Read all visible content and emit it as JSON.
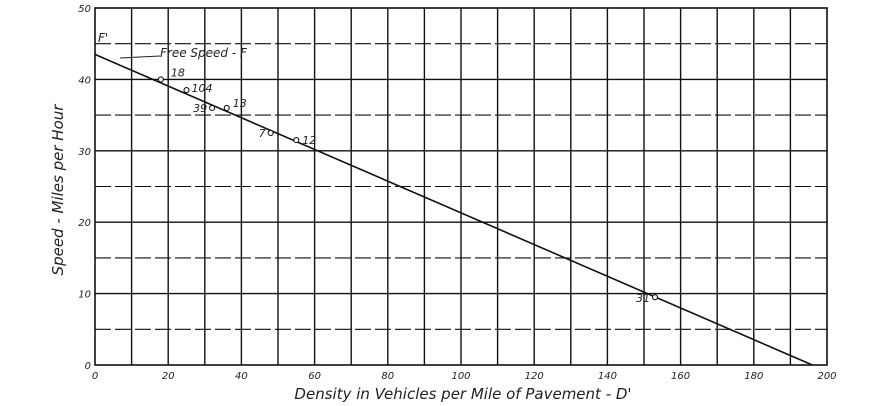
{
  "chart_data": {
    "type": "scatter",
    "xlabel": "Density in Vehicles per Mile of Pavement - D'",
    "ylabel": "Speed - Miles per Hour",
    "xlim": [
      0,
      200
    ],
    "ylim": [
      0,
      50
    ],
    "x_ticks": [
      "0",
      "20",
      "40",
      "60",
      "80",
      "100",
      "120",
      "140",
      "160",
      "180",
      "200"
    ],
    "y_ticks": [
      "0",
      "10",
      "20",
      "30",
      "40",
      "50"
    ],
    "grid": true,
    "points": [
      {
        "label": "18",
        "x": 18,
        "y": 40
      },
      {
        "label": "104",
        "x": 25,
        "y": 38.5
      },
      {
        "label": "39",
        "x": 32,
        "y": 36
      },
      {
        "label": "13",
        "x": 36,
        "y": 36
      },
      {
        "label": "7",
        "x": 48,
        "y": 32.5
      },
      {
        "label": "12",
        "x": 55,
        "y": 31.5
      },
      {
        "label": "31",
        "x": 153,
        "y": 9.5
      }
    ],
    "fit_line": {
      "x": [
        0,
        196
      ],
      "y": [
        43.5,
        0
      ]
    },
    "annotations": [
      "F'",
      "Free Speed - F"
    ]
  }
}
